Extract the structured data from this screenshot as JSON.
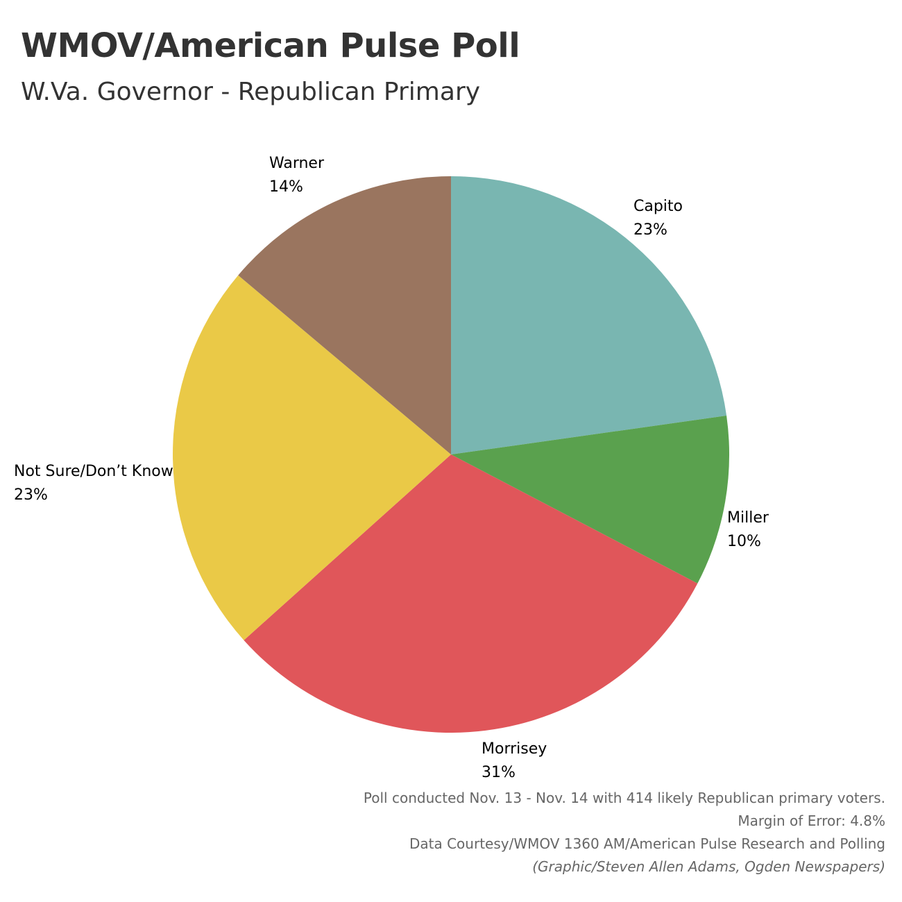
{
  "chart_data": {
    "type": "pie",
    "title": "WMOV/American Pulse Poll",
    "subtitle": "W.Va. Governor - Republican Primary",
    "slices": [
      {
        "name": "Capito",
        "value": 23,
        "label": "23%",
        "color": "#79B6B1"
      },
      {
        "name": "Miller",
        "value": 10,
        "label": "10%",
        "color": "#5AA14E"
      },
      {
        "name": "Morrisey",
        "value": 31,
        "label": "31%",
        "color": "#E0565A"
      },
      {
        "name": "Not Sure/Don’t Know",
        "value": 23,
        "label": "23%",
        "color": "#EAC947"
      },
      {
        "name": "Warner",
        "value": 14,
        "label": "14%",
        "color": "#9A755F"
      }
    ],
    "legend": "none",
    "direction": "clockwise-from-top"
  },
  "footer": {
    "line1": "Poll conducted Nov. 13 - Nov. 14 with  414 likely Republican primary voters.",
    "line2": "Margin of Error: 4.8%",
    "line3": "Data Courtesy/WMOV 1360 AM/American Pulse Research and Polling",
    "line4": "(Graphic/Steven Allen Adams, Ogden Newspapers)"
  }
}
